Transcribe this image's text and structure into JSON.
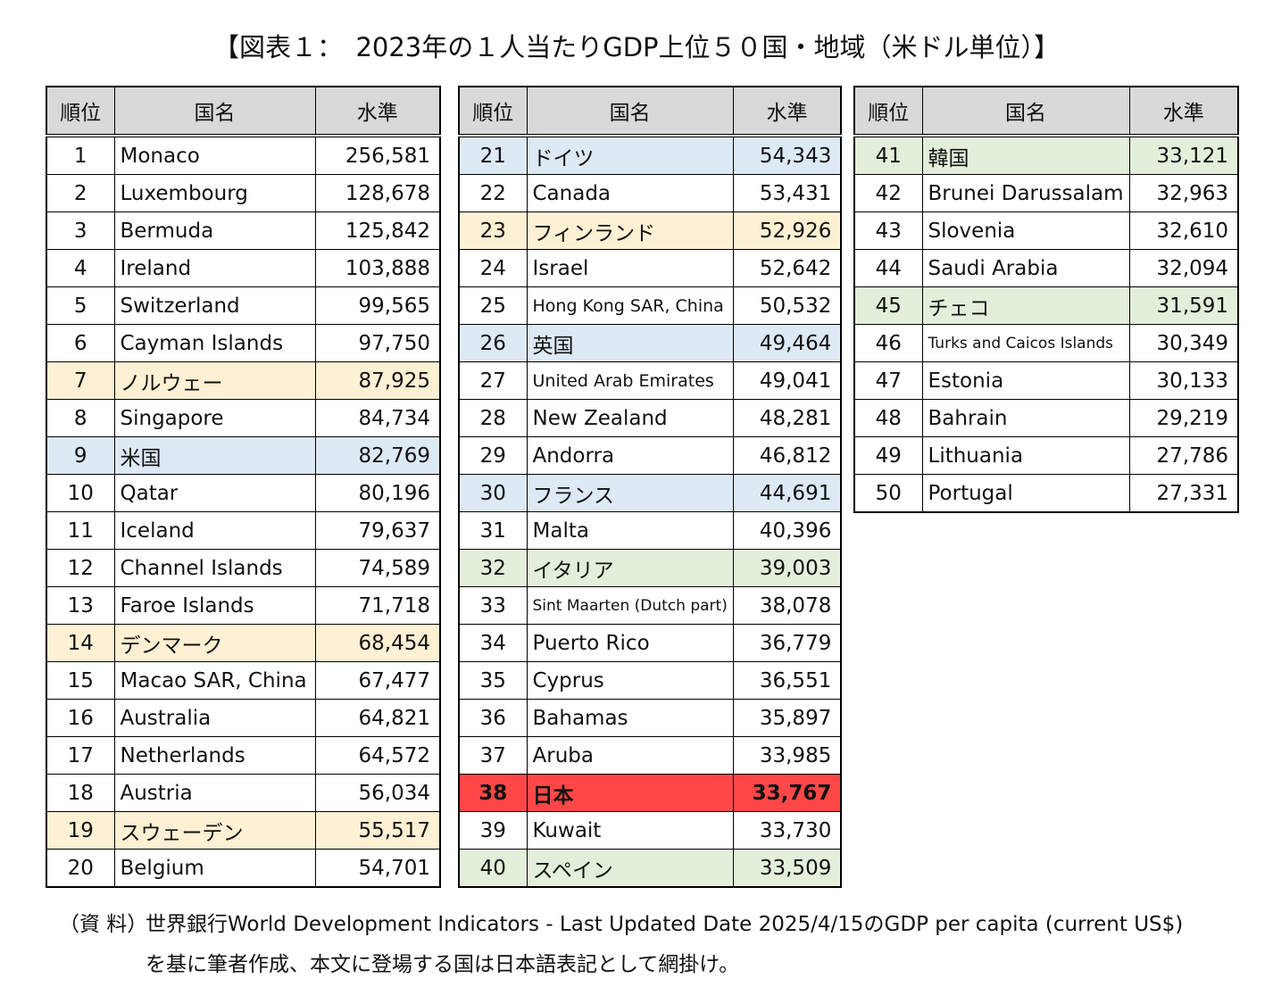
{
  "title": "【図表１：　2023年の１人当たりGDP上位５０国・地域（米ドル単位）】",
  "tables": [
    {
      "header": [
        "順位",
        "国名",
        "水準"
      ],
      "rows": [
        {
          "rank": 1,
          "name": "Monaco",
          "value": "256,581"
        },
        {
          "rank": 2,
          "name": "Luxembourg",
          "value": "128,678"
        },
        {
          "rank": 3,
          "name": "Bermuda",
          "value": "125,842"
        },
        {
          "rank": 4,
          "name": "Ireland",
          "value": "103,888"
        },
        {
          "rank": 5,
          "name": "Switzerland",
          "value": "99,565"
        },
        {
          "rank": 6,
          "name": "Cayman Islands",
          "value": "97,750"
        },
        {
          "rank": 7,
          "name": "ノルウェー",
          "value": "87,925",
          "fill": "#fdf0d3"
        },
        {
          "rank": 8,
          "name": "Singapore",
          "value": "84,734"
        },
        {
          "rank": 9,
          "name": "米国",
          "value": "82,769",
          "fill": "#dde9f5"
        },
        {
          "rank": 10,
          "name": "Qatar",
          "value": "80,196"
        },
        {
          "rank": 11,
          "name": "Iceland",
          "value": "79,637"
        },
        {
          "rank": 12,
          "name": "Channel Islands",
          "value": "74,589"
        },
        {
          "rank": 13,
          "name": "Faroe Islands",
          "value": "71,718"
        },
        {
          "rank": 14,
          "name": "デンマーク",
          "value": "68,454",
          "fill": "#fdf0d3"
        },
        {
          "rank": 15,
          "name": "Macao SAR, China",
          "value": "67,477"
        },
        {
          "rank": 16,
          "name": "Australia",
          "value": "64,821"
        },
        {
          "rank": 17,
          "name": "Netherlands",
          "value": "64,572"
        },
        {
          "rank": 18,
          "name": "Austria",
          "value": "56,034"
        },
        {
          "rank": 19,
          "name": "スウェーデン",
          "value": "55,517",
          "fill": "#fdf0d3"
        },
        {
          "rank": 20,
          "name": "Belgium",
          "value": "54,701"
        }
      ]
    },
    {
      "header": [
        "順位",
        "国名",
        "水準"
      ],
      "rows": [
        {
          "rank": 21,
          "name": "ドイツ",
          "value": "54,343",
          "fill": "#dde9f5"
        },
        {
          "rank": 22,
          "name": "Canada",
          "value": "53,431"
        },
        {
          "rank": 23,
          "name": "フィンランド",
          "value": "52,926",
          "fill": "#fdf0d3"
        },
        {
          "rank": 24,
          "name": "Israel",
          "value": "52,642"
        },
        {
          "rank": 25,
          "name": "Hong Kong SAR, China",
          "value": "50,532"
        },
        {
          "rank": 26,
          "name": "英国",
          "value": "49,464",
          "fill": "#dde9f5"
        },
        {
          "rank": 27,
          "name": "United Arab Emirates",
          "value": "49,041"
        },
        {
          "rank": 28,
          "name": "New Zealand",
          "value": "48,281"
        },
        {
          "rank": 29,
          "name": "Andorra",
          "value": "46,812"
        },
        {
          "rank": 30,
          "name": "フランス",
          "value": "44,691",
          "fill": "#dde9f5"
        },
        {
          "rank": 31,
          "name": "Malta",
          "value": "40,396"
        },
        {
          "rank": 32,
          "name": "イタリア",
          "value": "39,003",
          "fill": "#e3efda"
        },
        {
          "rank": 33,
          "name": "Sint Maarten (Dutch part)",
          "value": "38,078"
        },
        {
          "rank": 34,
          "name": "Puerto Rico",
          "value": "36,779"
        },
        {
          "rank": 35,
          "name": "Cyprus",
          "value": "36,551"
        },
        {
          "rank": 36,
          "name": "Bahamas",
          "value": "35,897"
        },
        {
          "rank": 37,
          "name": "Aruba",
          "value": "33,985"
        },
        {
          "rank": 38,
          "name": "日本",
          "value": "33,767",
          "fill": "#ff4747"
        },
        {
          "rank": 39,
          "name": "Kuwait",
          "value": "33,730"
        },
        {
          "rank": 40,
          "name": "スペイン",
          "value": "33,509",
          "fill": "#e3efda"
        }
      ]
    },
    {
      "header": [
        "順位",
        "国名",
        "水準"
      ],
      "rows": [
        {
          "rank": 41,
          "name": "韓国",
          "value": "33,121",
          "fill": "#e3efda"
        },
        {
          "rank": 42,
          "name": "Brunei Darussalam",
          "value": "32,963"
        },
        {
          "rank": 43,
          "name": "Slovenia",
          "value": "32,610"
        },
        {
          "rank": 44,
          "name": "Saudi Arabia",
          "value": "32,094"
        },
        {
          "rank": 45,
          "name": "チェコ",
          "value": "31,591",
          "fill": "#e3efda"
        },
        {
          "rank": 46,
          "name": "Turks and Caicos Islands",
          "value": "30,349"
        },
        {
          "rank": 47,
          "name": "Estonia",
          "value": "30,133"
        },
        {
          "rank": 48,
          "name": "Bahrain",
          "value": "29,219"
        },
        {
          "rank": 49,
          "name": "Lithuania",
          "value": "27,786"
        },
        {
          "rank": 50,
          "name": "Portugal",
          "value": "27,331"
        }
      ]
    }
  ],
  "note": {
    "label": "（資 料）",
    "lines": [
      "世界銀行World Development Indicators - Last Updated Date 2025/4/15のGDP per capita (current US$)",
      "を基に筆者作成、本文に登場する国は日本語表記として網掛け。"
    ]
  }
}
